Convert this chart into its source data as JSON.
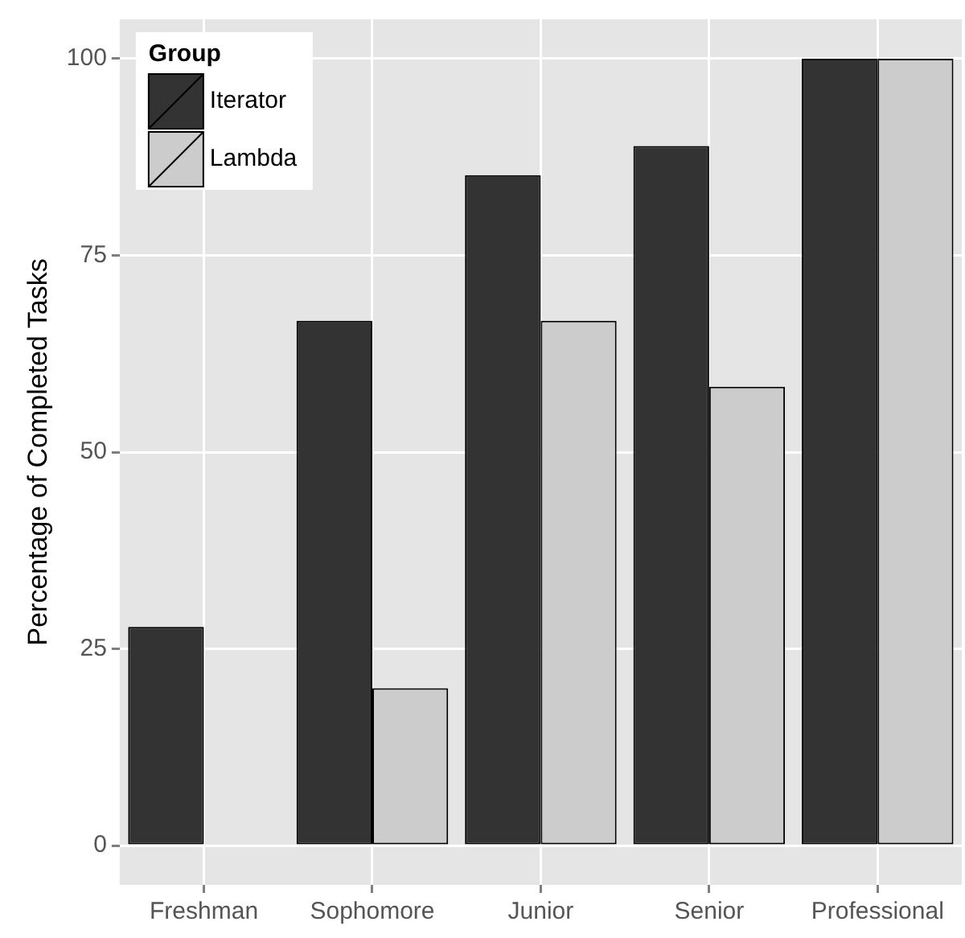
{
  "chart_data": {
    "type": "bar",
    "ylabel": "Percentage of Completed Tasks",
    "legend_title": "Group",
    "categories": [
      "Freshman",
      "Sophomore",
      "Junior",
      "Senior",
      "Professional"
    ],
    "series": [
      {
        "name": "Iterator",
        "color": "#333333",
        "values": [
          27.8,
          66.7,
          85.2,
          88.9,
          100
        ]
      },
      {
        "name": "Lambda",
        "color": "#cccccc",
        "values": [
          0,
          20,
          66.7,
          58.3,
          100
        ]
      }
    ],
    "ylim": [
      -5,
      105
    ],
    "yticks": [
      0,
      25,
      50,
      75,
      100
    ],
    "grid": true,
    "legend": "top left"
  }
}
